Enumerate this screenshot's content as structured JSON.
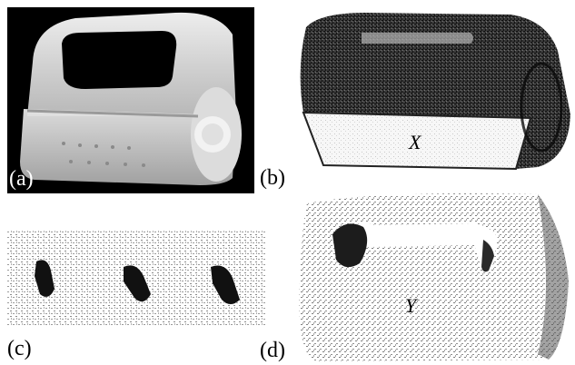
{
  "figure": {
    "panels": [
      {
        "id": "a",
        "label": "(a)",
        "content": "photo-of-plastic-container"
      },
      {
        "id": "b",
        "label": "(b)",
        "content": "point-cloud-X",
        "variable": "X"
      },
      {
        "id": "c",
        "label": "(c)",
        "content": "point-cloud-patch-three-holes"
      },
      {
        "id": "d",
        "label": "(d)",
        "content": "point-cloud-Y",
        "variable": "Y"
      }
    ]
  },
  "colors": {
    "photo_bg": "#000000",
    "photo_body": "#d9d9d9",
    "dark_points": "#1a1a1a",
    "light_points": "#bdbdbd",
    "face_fill": "#f4f4f4"
  }
}
